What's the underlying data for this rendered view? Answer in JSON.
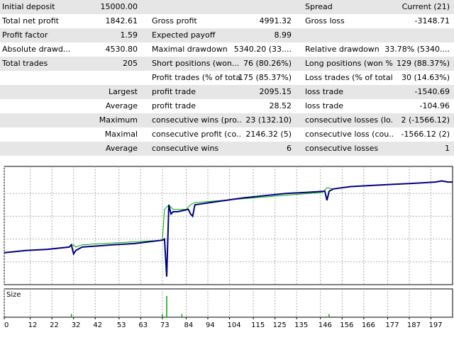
{
  "report": {
    "rows": [
      {
        "c0": "Initial deposit",
        "v0": "15000.00",
        "c1": "",
        "v1": "",
        "c2": "Spread",
        "v2": "Current (21)"
      },
      {
        "c0": "Total net profit",
        "v0": "1842.61",
        "c1": "Gross profit",
        "v1": "4991.32",
        "c2": "Gross loss",
        "v2": "-3148.71"
      },
      {
        "c0": "Profit factor",
        "v0": "1.59",
        "c1": "Expected payoff",
        "v1": "8.99",
        "c2": "",
        "v2": ""
      },
      {
        "c0": "Absolute drawd...",
        "v0": "4530.80",
        "c1": "Maximal drawdown",
        "v1": "5340.20 (33....",
        "c2": "Relative drawdown",
        "v2": "33.78% (5340...."
      },
      {
        "c0": "Total trades",
        "v0": "205",
        "c1": "Short positions (won...",
        "v1": "76 (80.26%)",
        "c2": "Long positions (won %)",
        "v2": "129 (88.37%)"
      },
      {
        "c0": "",
        "v0": "",
        "c1": "Profit trades (% of total)",
        "v1": "175 (85.37%)",
        "c2": "Loss trades (% of total)",
        "v2": "30 (14.63%)"
      },
      {
        "rlabel": "Largest",
        "c1": "profit trade",
        "v1": "2095.15",
        "c2": "loss trade",
        "v2": "-1540.69"
      },
      {
        "rlabel": "Average",
        "c1": "profit trade",
        "v1": "28.52",
        "c2": "loss trade",
        "v2": "-104.96"
      },
      {
        "rlabel": "Maximum",
        "c1": "consecutive wins (pro...",
        "v1": "23 (132.10)",
        "c2": "consecutive losses (lo...",
        "v2": "2 (-1566.12)"
      },
      {
        "rlabel": "Maximal",
        "c1": "consecutive profit (co...",
        "v1": "2146.32 (5)",
        "c2": "consecutive loss (cou...",
        "v2": "-1566.12 (2)"
      },
      {
        "rlabel": "Average",
        "c1": "consecutive wins",
        "v1": "6",
        "c2": "consecutive losses",
        "v2": "1"
      }
    ]
  },
  "chart_data": {
    "type": "line",
    "title": "",
    "xlabel": "",
    "ylabel": "",
    "subchart_label": "Size",
    "x_ticks": [
      "0",
      "12",
      "22",
      "32",
      "42",
      "53",
      "63",
      "73",
      "84",
      "94",
      "104",
      "115",
      "125",
      "135",
      "146",
      "156",
      "166",
      "177",
      "187",
      "197"
    ],
    "xlim": [
      0,
      207
    ],
    "ylim": [
      0,
      100
    ],
    "series": [
      {
        "color": "#000080",
        "x": [
          0,
          10,
          20,
          30,
          31,
          32,
          33,
          36,
          50,
          60,
          73,
          74,
          75,
          76,
          77,
          78,
          80,
          85,
          86,
          87,
          88,
          95,
          110,
          130,
          140,
          148,
          149,
          150,
          152,
          160,
          180,
          190,
          199,
          202,
          205,
          207
        ],
        "y": [
          28,
          30,
          31,
          33,
          35,
          27,
          30,
          33,
          35,
          36,
          39,
          40,
          7,
          70,
          62,
          64,
          64,
          66,
          62,
          60,
          70,
          72,
          76,
          80,
          81,
          82,
          74,
          82,
          84,
          86,
          88,
          89,
          90,
          91,
          90,
          90
        ]
      },
      {
        "color": "#00aa00",
        "x": [
          30,
          32,
          33,
          36,
          73,
          74,
          76,
          78,
          84,
          86,
          88,
          147,
          149,
          152
        ],
        "y": [
          33,
          35,
          33,
          35,
          39,
          66,
          70,
          66,
          66,
          70,
          72,
          81,
          85,
          84
        ]
      }
    ],
    "size_bars": {
      "color": "#00aa00",
      "x": [
        31,
        73,
        75,
        82,
        150
      ],
      "value": [
        0.15,
        0.15,
        1.0,
        0.15,
        0.15
      ]
    }
  }
}
